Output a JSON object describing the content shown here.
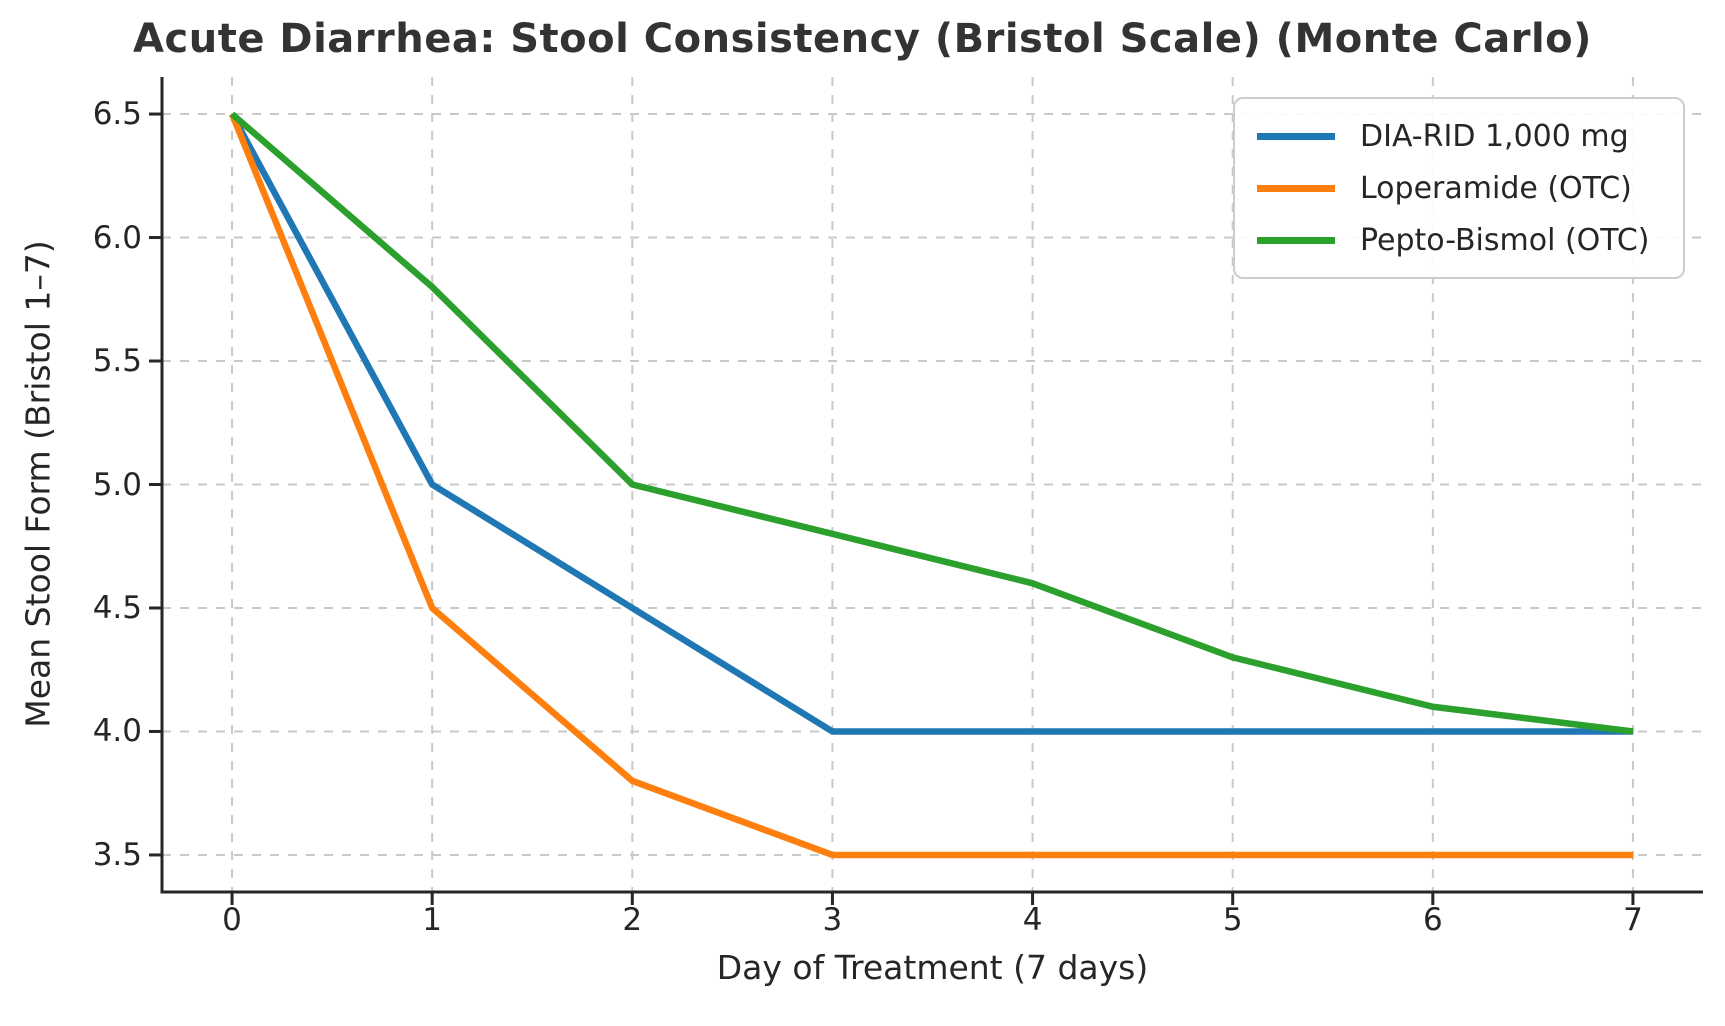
{
  "chart_data": {
    "type": "line",
    "title": "Acute Diarrhea: Stool Consistency (Bristol Scale) (Monte Carlo)",
    "xlabel": "Day of Treatment (7 days)",
    "ylabel": "Mean Stool Form (Bristol 1–7)",
    "x": [
      0,
      1,
      2,
      3,
      4,
      5,
      6,
      7
    ],
    "x_tick_labels": [
      "0",
      "1",
      "2",
      "3",
      "4",
      "5",
      "6",
      "7"
    ],
    "y_ticks": [
      3.5,
      4.0,
      4.5,
      5.0,
      5.5,
      6.0,
      6.5
    ],
    "y_tick_labels": [
      "3.5",
      "4.0",
      "4.5",
      "5.0",
      "5.5",
      "6.0",
      "6.5"
    ],
    "xlim": [
      -0.35,
      7.35
    ],
    "ylim": [
      3.35,
      6.65
    ],
    "grid": true,
    "grid_style": "dashed",
    "legend_position": "upper right",
    "series": [
      {
        "name": "DIA-RID 1,000 mg",
        "color": "#1f77b4",
        "values": [
          6.5,
          5.0,
          4.5,
          4.0,
          4.0,
          4.0,
          4.0,
          4.0
        ]
      },
      {
        "name": "Loperamide (OTC)",
        "color": "#ff7f0e",
        "values": [
          6.5,
          4.5,
          3.8,
          3.5,
          3.5,
          3.5,
          3.5,
          3.5
        ]
      },
      {
        "name": "Pepto-Bismol (OTC)",
        "color": "#2ca02c",
        "values": [
          6.5,
          5.8,
          5.0,
          4.8,
          4.6,
          4.3,
          4.1,
          4.0
        ]
      }
    ]
  },
  "colors": {
    "background": "#ffffff",
    "grid": "#c9c9c9",
    "spine": "#262626",
    "tick": "#262626",
    "tick_text": "#262626",
    "title_text": "#333333",
    "legend_border": "#cccccc"
  }
}
